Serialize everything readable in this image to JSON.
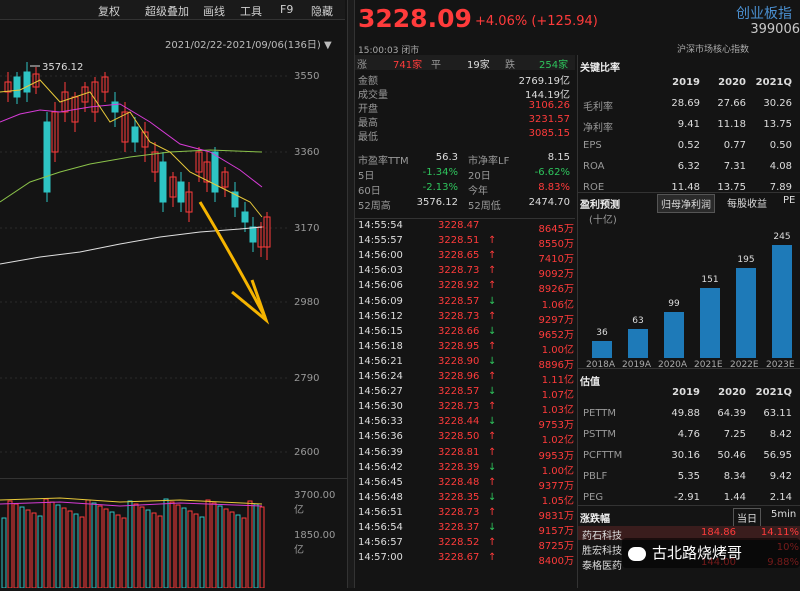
{
  "topbar": {
    "items": [
      "复权",
      "超级叠加",
      "画线",
      "工具",
      "F9",
      "隐藏"
    ]
  },
  "chart": {
    "date_range": "2021/02/22-2021/09/06(136日)",
    "high_label": "3576.12",
    "y_ticks": [
      "3550",
      "3360",
      "3170",
      "2980",
      "2790",
      "2600"
    ],
    "vol_ticks": [
      "3700.00亿",
      "1850.00亿"
    ]
  },
  "quote": {
    "price": "3228.09",
    "change": "+4.06% (+125.94)",
    "name": "创业板指",
    "code": "399006",
    "time_status": "15:00:03 闭市",
    "market": "沪深市场核心指数"
  },
  "breadth": {
    "up_label": "涨",
    "up": "741家",
    "flat_label": "平",
    "flat": "19家",
    "down_label": "跌",
    "down": "254家"
  },
  "stats": [
    {
      "label": "金额",
      "value": "2769.19亿",
      "color": "white"
    },
    {
      "label": "成交量",
      "value": "144.19亿",
      "color": "white"
    },
    {
      "label": "开盘",
      "value": "3106.26",
      "color": "red"
    },
    {
      "label": "最高",
      "value": "3231.57",
      "color": "red"
    },
    {
      "label": "最低",
      "value": "3085.15",
      "color": "red"
    }
  ],
  "stats2": [
    {
      "l1": "市盈率TTM",
      "v1": "56.3",
      "c1": "white",
      "l2": "市净率LF",
      "v2": "8.15",
      "c2": "white"
    },
    {
      "l1": "5日",
      "v1": "-1.34%",
      "c1": "green",
      "l2": "20日",
      "v2": "-6.62%",
      "c2": "green"
    },
    {
      "l1": "60日",
      "v1": "-2.13%",
      "c1": "green",
      "l2": "今年",
      "v2": "8.83%",
      "c2": "red"
    },
    {
      "l1": "52周高",
      "v1": "3576.12",
      "c1": "white",
      "l2": "52周低",
      "v2": "2474.70",
      "c2": "white"
    }
  ],
  "ticks": [
    {
      "t": "14:55:54",
      "p": "3228.47",
      "a": "",
      "v": "8645万"
    },
    {
      "t": "14:55:57",
      "p": "3228.51",
      "a": "↑",
      "v": "8550万"
    },
    {
      "t": "14:56:00",
      "p": "3228.65",
      "a": "↑",
      "v": "7410万"
    },
    {
      "t": "14:56:03",
      "p": "3228.73",
      "a": "↑",
      "v": "9092万"
    },
    {
      "t": "14:56:06",
      "p": "3228.92",
      "a": "↑",
      "v": "8926万"
    },
    {
      "t": "14:56:09",
      "p": "3228.57",
      "a": "↓",
      "v": "1.06亿"
    },
    {
      "t": "14:56:12",
      "p": "3228.73",
      "a": "↑",
      "v": "9297万"
    },
    {
      "t": "14:56:15",
      "p": "3228.66",
      "a": "↓",
      "v": "9652万"
    },
    {
      "t": "14:56:18",
      "p": "3228.95",
      "a": "↑",
      "v": "1.00亿"
    },
    {
      "t": "14:56:21",
      "p": "3228.90",
      "a": "↓",
      "v": "8896万"
    },
    {
      "t": "14:56:24",
      "p": "3228.96",
      "a": "↑",
      "v": "1.11亿"
    },
    {
      "t": "14:56:27",
      "p": "3228.57",
      "a": "↓",
      "v": "1.07亿"
    },
    {
      "t": "14:56:30",
      "p": "3228.73",
      "a": "↑",
      "v": "1.03亿"
    },
    {
      "t": "14:56:33",
      "p": "3228.44",
      "a": "↓",
      "v": "9753万"
    },
    {
      "t": "14:56:36",
      "p": "3228.50",
      "a": "↑",
      "v": "1.02亿"
    },
    {
      "t": "14:56:39",
      "p": "3228.81",
      "a": "↑",
      "v": "9953万"
    },
    {
      "t": "14:56:42",
      "p": "3228.39",
      "a": "↓",
      "v": "1.00亿"
    },
    {
      "t": "14:56:45",
      "p": "3228.48",
      "a": "↑",
      "v": "9377万"
    },
    {
      "t": "14:56:48",
      "p": "3228.35",
      "a": "↓",
      "v": "1.05亿"
    },
    {
      "t": "14:56:51",
      "p": "3228.73",
      "a": "↑",
      "v": "9831万"
    },
    {
      "t": "14:56:54",
      "p": "3228.37",
      "a": "↓",
      "v": "9157万"
    },
    {
      "t": "14:56:57",
      "p": "3228.52",
      "a": "↑",
      "v": "8725万"
    },
    {
      "t": "14:57:00",
      "p": "3228.67",
      "a": "↑",
      "v": "8400万"
    }
  ],
  "key_ratios": {
    "title": "关键比率",
    "years": [
      "2019",
      "2020",
      "2021Q"
    ],
    "rows": [
      {
        "label": "毛利率",
        "v": [
          "28.69",
          "27.66",
          "30.26"
        ]
      },
      {
        "label": "净利率",
        "v": [
          "9.41",
          "11.18",
          "13.75"
        ]
      },
      {
        "label": "EPS",
        "v": [
          "0.52",
          "0.77",
          "0.50"
        ]
      },
      {
        "label": "ROA",
        "v": [
          "6.32",
          "7.31",
          "4.08"
        ]
      },
      {
        "label": "ROE",
        "v": [
          "11.48",
          "13.75",
          "7.89"
        ]
      }
    ]
  },
  "forecast": {
    "title": "盈利预测",
    "tabs": [
      "归母净利润",
      "每股收益",
      "PE"
    ],
    "unit": "(十亿)",
    "labels": [
      "2018A",
      "2019A",
      "2020A",
      "2021E",
      "2022E",
      "2023E"
    ],
    "values": [
      36,
      63,
      99,
      151,
      195,
      245
    ]
  },
  "valuation": {
    "title": "估值",
    "years": [
      "2019",
      "2020",
      "2021Q"
    ],
    "rows": [
      {
        "label": "PETTM",
        "v": [
          "49.88",
          "64.39",
          "63.11"
        ]
      },
      {
        "label": "PSTTM",
        "v": [
          "4.76",
          "7.25",
          "8.42"
        ]
      },
      {
        "label": "PCFTTM",
        "v": [
          "30.16",
          "50.46",
          "56.95"
        ]
      },
      {
        "label": "PBLF",
        "v": [
          "5.35",
          "8.34",
          "9.42"
        ]
      },
      {
        "label": "PEG",
        "v": [
          "-2.91",
          "1.44",
          "2.14"
        ]
      }
    ]
  },
  "movers": {
    "title": "涨跌幅",
    "tabs": [
      "当日",
      "5min"
    ],
    "rows": [
      {
        "name": "药石科技",
        "price": "184.86",
        "pct": "14.11%"
      },
      {
        "name": "胜宏科技",
        "price": "",
        "pct": "10%"
      },
      {
        "name": "泰格医药",
        "price": "144.00",
        "pct": "9.88%"
      }
    ]
  },
  "watermark": "古北路烧烤哥",
  "colors": {
    "up": "#ff3b3b",
    "down": "#2ec45c",
    "accent": "#3b8fe0",
    "bg": "#141414"
  }
}
